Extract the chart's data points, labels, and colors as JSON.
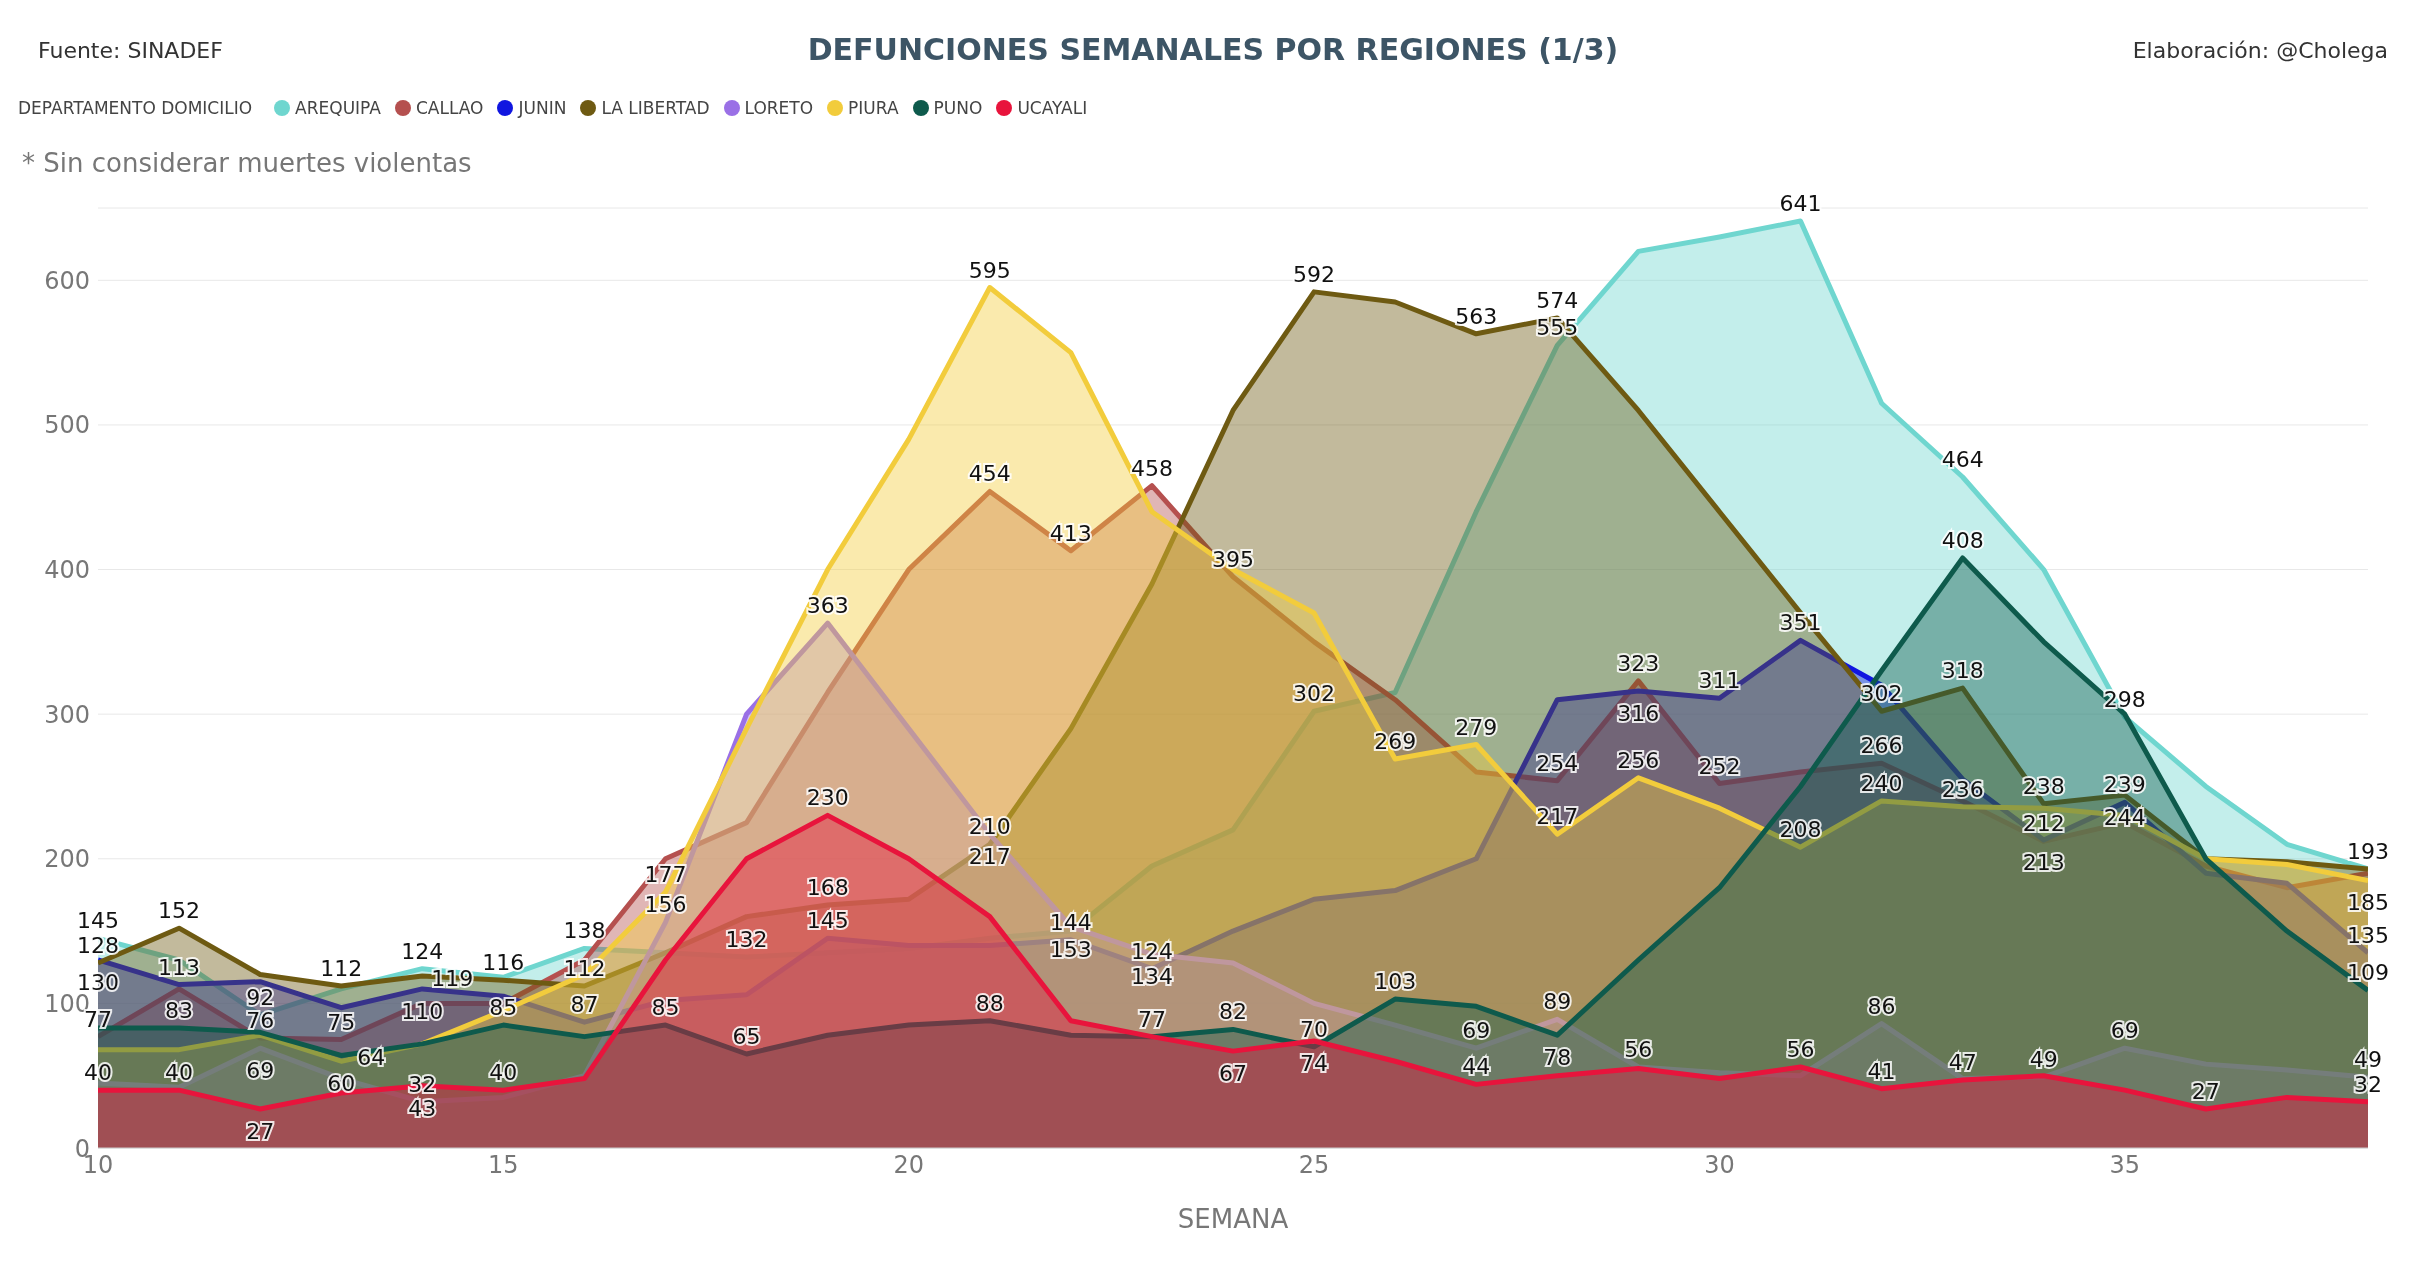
{
  "chart_data": {
    "type": "area",
    "title": "DEFUNCIONES SEMANALES POR REGIONES (1/3)",
    "xlabel": "SEMANA",
    "legend_title": "DEPARTAMENTO DOMICILIO",
    "annotations": [
      "Fuente: SINADEF",
      "Elaboración: @Cholega",
      "* Sin considerar muertes violentas"
    ],
    "x": [
      10,
      11,
      12,
      13,
      14,
      15,
      16,
      17,
      18,
      19,
      20,
      21,
      22,
      23,
      24,
      25,
      26,
      27,
      28,
      29,
      30,
      31,
      32,
      33,
      34,
      35,
      36,
      37,
      38
    ],
    "xlim": [
      10,
      38
    ],
    "xticks": [
      10,
      15,
      20,
      25,
      30,
      35
    ],
    "ylim": [
      0,
      650
    ],
    "yticks": [
      0,
      100,
      200,
      300,
      400,
      500,
      600
    ],
    "grid": "y",
    "legend": "top left",
    "marker": "none",
    "series": [
      {
        "name": "AREQUIPA",
        "color": "#6fd6cf",
        "values": [
          145,
          130,
          92,
          110,
          124,
          118,
          138,
          135,
          132,
          135,
          138,
          145,
          150,
          195,
          220,
          302,
          315,
          440,
          555,
          620,
          630,
          641,
          515,
          464,
          400,
          298,
          250,
          210,
          193
        ],
        "value_labels": [
          "145",
          null,
          "92",
          null,
          "124",
          null,
          "138",
          null,
          "132",
          null,
          null,
          null,
          null,
          null,
          null,
          "302",
          null,
          null,
          "555",
          null,
          null,
          "641",
          null,
          "464",
          null,
          "298",
          null,
          null,
          "193"
        ]
      },
      {
        "name": "CALLAO",
        "color": "#b5504f",
        "values": [
          77,
          110,
          76,
          75,
          100,
          100,
          130,
          200,
          225,
          315,
          400,
          454,
          413,
          458,
          395,
          350,
          310,
          260,
          254,
          323,
          252,
          260,
          266,
          240,
          212,
          225,
          195,
          180,
          190
        ],
        "value_labels": [
          "77",
          null,
          "76",
          "75",
          null,
          null,
          null,
          null,
          null,
          null,
          null,
          "454",
          "413",
          "458",
          "395",
          null,
          null,
          null,
          "254",
          "323",
          "252",
          null,
          "266",
          null,
          "212",
          null,
          null,
          null,
          null
        ]
      },
      {
        "name": "JUNIN",
        "color": "#1016e0",
        "values": [
          130,
          113,
          115,
          97,
          110,
          105,
          87,
          102,
          106,
          145,
          140,
          140,
          144,
          124,
          150,
          172,
          178,
          200,
          310,
          316,
          311,
          351,
          320,
          255,
          213,
          239,
          190,
          183,
          135
        ],
        "value_labels": [
          "130",
          "113",
          null,
          null,
          "110",
          null,
          "87",
          null,
          null,
          "145",
          null,
          null,
          "144",
          "124",
          null,
          null,
          null,
          null,
          null,
          "316",
          "311",
          "351",
          null,
          null,
          "213",
          "239",
          null,
          null,
          "135"
        ]
      },
      {
        "name": "LA LIBERTAD",
        "color": "#6e5a12",
        "values": [
          128,
          152,
          120,
          112,
          119,
          116,
          112,
          135,
          160,
          168,
          172,
          210,
          290,
          390,
          510,
          592,
          585,
          563,
          574,
          510,
          440,
          370,
          302,
          318,
          238,
          244,
          200,
          198,
          193
        ],
        "value_labels": [
          "128",
          "152",
          null,
          "112",
          "119",
          "116",
          "112",
          null,
          null,
          "168",
          null,
          "210",
          null,
          null,
          null,
          "592",
          null,
          "563",
          "574",
          null,
          null,
          null,
          "302",
          "318",
          "238",
          "244",
          null,
          null,
          null
        ]
      },
      {
        "name": "LORETO",
        "color": "#9a70e6",
        "values": [
          45,
          42,
          69,
          48,
          32,
          35,
          50,
          156,
          300,
          363,
          290,
          217,
          153,
          134,
          128,
          100,
          85,
          69,
          89,
          56,
          52,
          50,
          86,
          48,
          49,
          69,
          58,
          54,
          49
        ],
        "value_labels": [
          null,
          null,
          "69",
          null,
          "32",
          null,
          null,
          "156",
          null,
          "363",
          null,
          "217",
          "153",
          "134",
          null,
          null,
          null,
          "69",
          "89",
          "56",
          null,
          null,
          "86",
          null,
          "49",
          "69",
          null,
          null,
          "49"
        ]
      },
      {
        "name": "PIURA",
        "color": "#f2cc3c",
        "values": [
          68,
          68,
          78,
          60,
          72,
          95,
          120,
          177,
          290,
          400,
          490,
          595,
          550,
          440,
          400,
          370,
          269,
          279,
          217,
          256,
          235,
          208,
          240,
          236,
          235,
          230,
          200,
          196,
          185
        ],
        "value_labels": [
          null,
          null,
          null,
          "60",
          null,
          null,
          null,
          "177",
          null,
          null,
          null,
          "595",
          null,
          null,
          null,
          null,
          "269",
          "279",
          "217",
          "256",
          null,
          "208",
          "240",
          "236",
          null,
          null,
          null,
          null,
          "185"
        ]
      },
      {
        "name": "PUNO",
        "color": "#0e5a4c",
        "values": [
          83,
          83,
          80,
          64,
          72,
          85,
          77,
          85,
          65,
          78,
          85,
          88,
          78,
          77,
          82,
          70,
          103,
          98,
          78,
          130,
          180,
          250,
          330,
          408,
          350,
          300,
          200,
          150,
          109
        ],
        "value_labels": [
          null,
          "83",
          null,
          "64",
          null,
          "85",
          null,
          "85",
          "65",
          null,
          null,
          "88",
          null,
          null,
          "82",
          "70",
          "103",
          null,
          "78",
          null,
          null,
          null,
          null,
          "408",
          null,
          null,
          null,
          null,
          "109"
        ]
      },
      {
        "name": "UCAYALI",
        "color": "#e8143c",
        "values": [
          40,
          40,
          27,
          38,
          43,
          40,
          48,
          130,
          200,
          230,
          200,
          160,
          88,
          77,
          67,
          74,
          60,
          44,
          50,
          55,
          48,
          56,
          41,
          47,
          50,
          40,
          27,
          35,
          32
        ],
        "value_labels": [
          "40",
          "40",
          "27",
          null,
          "43",
          "40",
          null,
          null,
          null,
          "230",
          null,
          null,
          null,
          "77",
          "67",
          "74",
          null,
          "44",
          null,
          null,
          null,
          "56",
          "41",
          "47",
          null,
          null,
          "27",
          null,
          "32"
        ]
      }
    ]
  }
}
